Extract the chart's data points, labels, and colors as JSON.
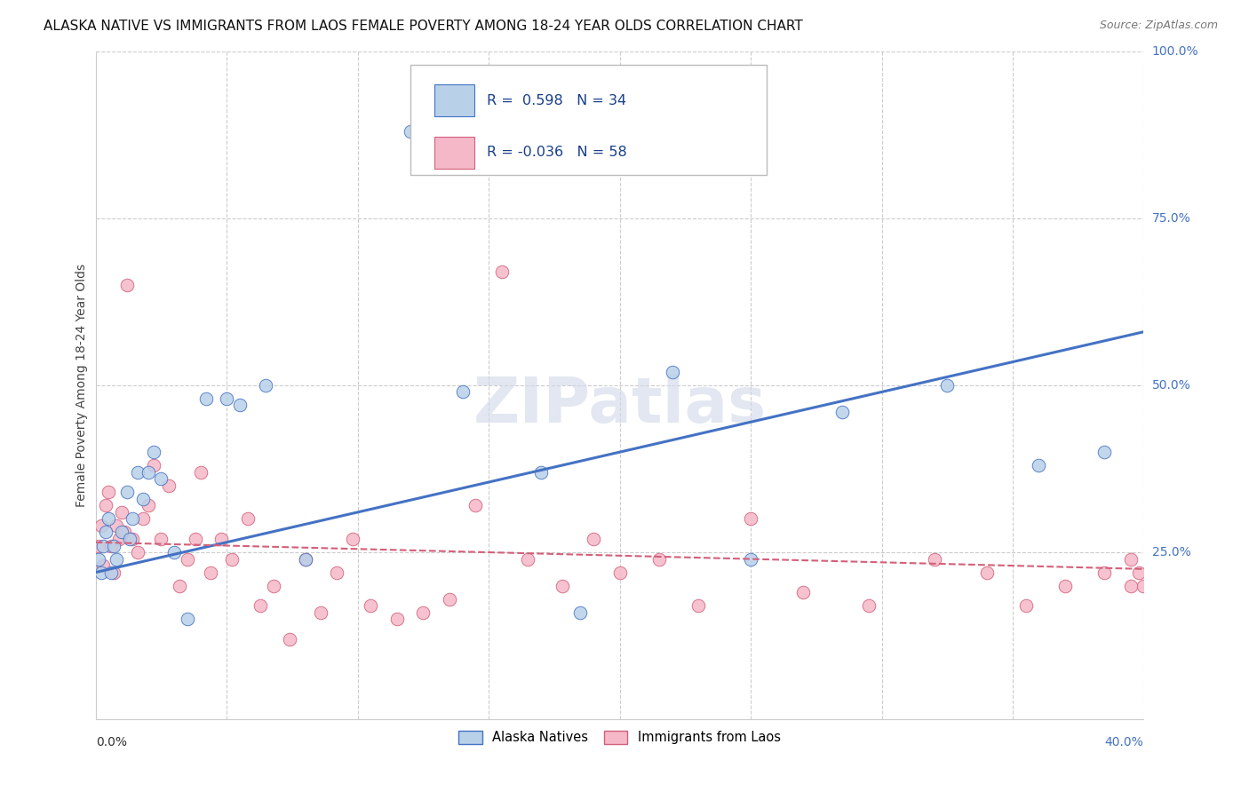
{
  "title": "ALASKA NATIVE VS IMMIGRANTS FROM LAOS FEMALE POVERTY AMONG 18-24 YEAR OLDS CORRELATION CHART",
  "source": "Source: ZipAtlas.com",
  "ylabel": "Female Poverty Among 18-24 Year Olds",
  "color_blue_fill": "#b8d0e8",
  "color_blue_edge": "#4472c4",
  "color_pink_fill": "#f5b8c8",
  "color_pink_edge": "#d45f7a",
  "color_line_blue": "#4472c4",
  "color_line_pink": "#d45f7a",
  "color_grid": "#cccccc",
  "color_right_axis": "#4472c4",
  "watermark_color": "#d0d8e8",
  "alaska_x": [
    0.001,
    0.002,
    0.003,
    0.004,
    0.005,
    0.006,
    0.007,
    0.008,
    0.01,
    0.012,
    0.013,
    0.014,
    0.016,
    0.018,
    0.02,
    0.022,
    0.025,
    0.03,
    0.035,
    0.042,
    0.05,
    0.055,
    0.065,
    0.08,
    0.12,
    0.14,
    0.17,
    0.185,
    0.22,
    0.25,
    0.285,
    0.325,
    0.36,
    0.385
  ],
  "alaska_y": [
    0.24,
    0.22,
    0.26,
    0.28,
    0.3,
    0.22,
    0.26,
    0.24,
    0.28,
    0.34,
    0.27,
    0.3,
    0.37,
    0.33,
    0.37,
    0.4,
    0.36,
    0.25,
    0.15,
    0.48,
    0.48,
    0.47,
    0.5,
    0.24,
    0.88,
    0.49,
    0.37,
    0.16,
    0.52,
    0.24,
    0.46,
    0.5,
    0.38,
    0.4
  ],
  "laos_x": [
    0.001,
    0.002,
    0.003,
    0.004,
    0.005,
    0.006,
    0.007,
    0.008,
    0.009,
    0.01,
    0.011,
    0.012,
    0.014,
    0.016,
    0.018,
    0.02,
    0.022,
    0.025,
    0.028,
    0.032,
    0.035,
    0.038,
    0.04,
    0.044,
    0.048,
    0.052,
    0.058,
    0.063,
    0.068,
    0.074,
    0.08,
    0.086,
    0.092,
    0.098,
    0.105,
    0.115,
    0.125,
    0.135,
    0.145,
    0.155,
    0.165,
    0.178,
    0.19,
    0.2,
    0.215,
    0.23,
    0.25,
    0.27,
    0.295,
    0.32,
    0.34,
    0.355,
    0.37,
    0.385,
    0.395,
    0.4,
    0.395,
    0.398
  ],
  "laos_y": [
    0.26,
    0.29,
    0.23,
    0.32,
    0.34,
    0.26,
    0.22,
    0.29,
    0.27,
    0.31,
    0.28,
    0.65,
    0.27,
    0.25,
    0.3,
    0.32,
    0.38,
    0.27,
    0.35,
    0.2,
    0.24,
    0.27,
    0.37,
    0.22,
    0.27,
    0.24,
    0.3,
    0.17,
    0.2,
    0.12,
    0.24,
    0.16,
    0.22,
    0.27,
    0.17,
    0.15,
    0.16,
    0.18,
    0.32,
    0.67,
    0.24,
    0.2,
    0.27,
    0.22,
    0.24,
    0.17,
    0.3,
    0.19,
    0.17,
    0.24,
    0.22,
    0.17,
    0.2,
    0.22,
    0.24,
    0.2,
    0.2,
    0.22
  ],
  "blue_line_x": [
    0.0,
    0.4
  ],
  "blue_line_y": [
    0.22,
    0.58
  ],
  "pink_line_x": [
    0.0,
    0.4
  ],
  "pink_line_y": [
    0.265,
    0.225
  ],
  "ytick_vals": [
    0.25,
    0.5,
    0.75,
    1.0
  ],
  "ytick_labels": [
    "25.0%",
    "50.0%",
    "75.0%",
    "100.0%"
  ],
  "xlim": [
    0.0,
    0.4
  ],
  "ylim": [
    0.0,
    1.0
  ]
}
